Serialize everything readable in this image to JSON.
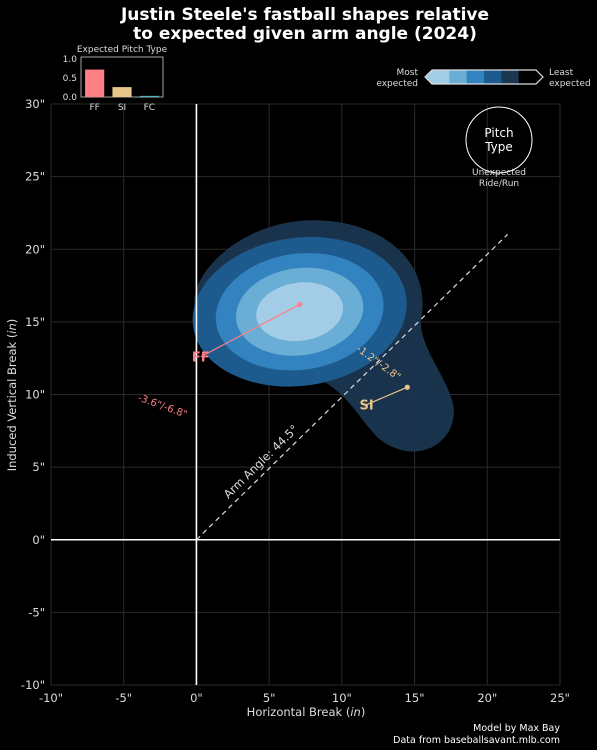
{
  "header": {
    "title_line1": "Justin Steele's fastball shapes relative",
    "title_line2": "to expected given arm angle (2024)"
  },
  "inset": {
    "title": "Expected Pitch Type",
    "yticks": [
      "0.0",
      "0.5",
      "1.0"
    ],
    "ylim": [
      0,
      1.05
    ],
    "bars": [
      {
        "label": "FF",
        "value": 0.72,
        "color": "#ff7f87"
      },
      {
        "label": "SI",
        "value": 0.26,
        "color": "#e8c58a"
      },
      {
        "label": "FC",
        "value": 0.03,
        "color": "#4cb8c4"
      }
    ]
  },
  "legend": {
    "most_line1": "Most",
    "most_line2": "expected",
    "least_line1": "Least",
    "least_line2": "expected",
    "colors": [
      "#a3cce6",
      "#6aaed6",
      "#3383c0",
      "#1d5a8e",
      "#1b3650",
      "#000000"
    ],
    "circle_line1": "Pitch",
    "circle_line2": "Type",
    "circle_caption_line1": "Unexpected",
    "circle_caption_line2": "Ride/Run"
  },
  "chart_data": {
    "type": "scatter",
    "xlabel_main": "Horizontal Break (",
    "xlabel_unit": "in",
    "xlabel_close": ")",
    "ylabel_main": "Induced Vertical Break (",
    "ylabel_unit": "in",
    "ylabel_close": ")",
    "xlim": [
      -10,
      25
    ],
    "ylim": [
      -10,
      30
    ],
    "xticks": [
      -10,
      -5,
      0,
      5,
      10,
      15,
      20,
      25
    ],
    "yticks": [
      -10,
      -5,
      0,
      5,
      10,
      15,
      20,
      25,
      30
    ],
    "xtick_labels": [
      "-10\"",
      "-5\"",
      "0\"",
      "5\"",
      "10\"",
      "15\"",
      "20\"",
      "25\""
    ],
    "ytick_labels": [
      "-10\"",
      "-5\"",
      "0\"",
      "5\"",
      "10\"",
      "15\"",
      "20\"",
      "25\"",
      "30\""
    ],
    "grid": true,
    "arm_angle": {
      "degrees": 44.5,
      "label": "Arm Angle: 44.5°"
    },
    "pitches": [
      {
        "name": "FF",
        "color": "#ff7f87",
        "expected": {
          "x": 7.1,
          "y": 16.2
        },
        "actual": {
          "x": 0.3,
          "y": 12.6
        },
        "ellipse": {
          "rx_in": 2.6,
          "ry_in": 7.4,
          "angle_deg": 33
        },
        "diff_label": "-3.6\"/-6.8\"",
        "diff_label_pos": {
          "x": -2.4,
          "y": 9.0
        },
        "diff_label_angle": 20
      },
      {
        "name": "SI",
        "color": "#e8c58a",
        "expected": {
          "x": 14.5,
          "y": 10.5
        },
        "actual": {
          "x": 11.7,
          "y": 9.3
        },
        "ellipse": {
          "rx_in": 3.2,
          "ry_in": 6.4,
          "angle_deg": 68
        },
        "diff_label": "-1.2\"/-2.8\"",
        "diff_label_pos": {
          "x": 12.4,
          "y": 12.0
        },
        "diff_label_angle": 36
      }
    ]
  },
  "credits": {
    "line1": "Model by Max Bay",
    "line2": "Data from baseballsavant.mlb.com"
  }
}
